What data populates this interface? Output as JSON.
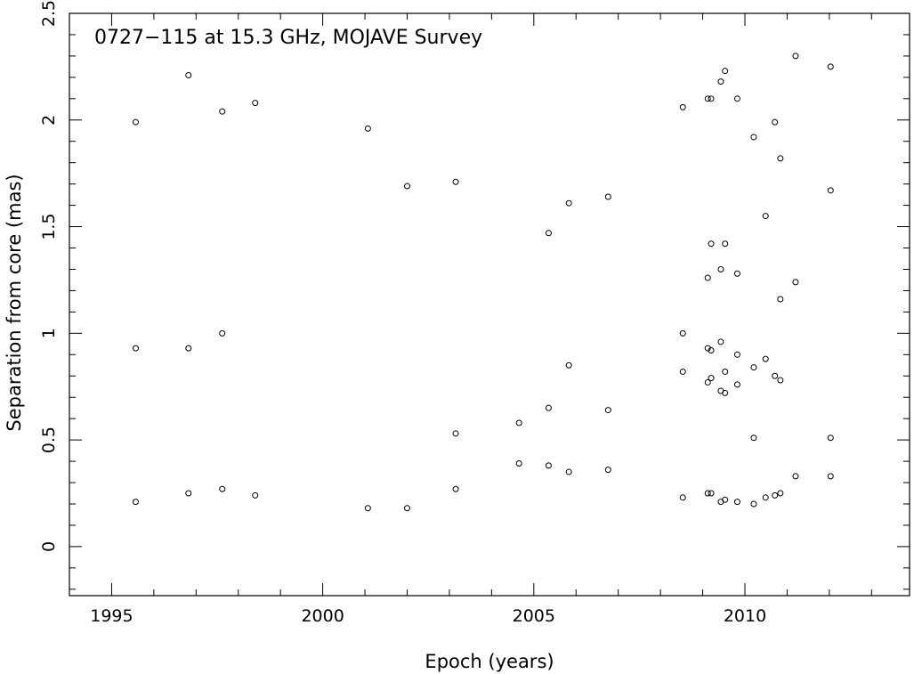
{
  "chart_data": {
    "type": "scatter",
    "title": "0727−115 at 15.3 GHz, MOJAVE Survey",
    "xlabel": "Epoch (years)",
    "ylabel": "Separation from core (mas)",
    "xlim": [
      1994.0,
      2013.9
    ],
    "ylim": [
      -0.23,
      2.5
    ],
    "xticks": [
      1995,
      2000,
      2005,
      2010
    ],
    "xtick_labels": [
      "1995",
      "2000",
      "2005",
      "2010"
    ],
    "yticks": [
      0,
      0.5,
      1,
      1.5,
      2,
      2.5
    ],
    "ytick_labels": [
      "0",
      "0.5",
      "1",
      "1.5",
      "2",
      "2.5"
    ],
    "grid": false,
    "marker": "open-circle",
    "series": [
      {
        "points": [
          [
            1995.57,
            1.99
          ],
          [
            1995.57,
            0.93
          ],
          [
            1995.57,
            0.21
          ],
          [
            1996.82,
            2.21
          ],
          [
            1996.82,
            0.93
          ],
          [
            1996.82,
            0.25
          ],
          [
            1997.62,
            2.04
          ],
          [
            1997.62,
            1.0
          ],
          [
            1997.62,
            0.27
          ],
          [
            1998.4,
            2.08
          ],
          [
            1998.4,
            0.24
          ],
          [
            2001.07,
            1.96
          ],
          [
            2001.07,
            0.18
          ],
          [
            2002.0,
            1.69
          ],
          [
            2002.0,
            0.18
          ],
          [
            2003.15,
            1.71
          ],
          [
            2003.15,
            0.53
          ],
          [
            2003.15,
            0.27
          ],
          [
            2004.65,
            0.58
          ],
          [
            2004.65,
            0.39
          ],
          [
            2005.35,
            1.47
          ],
          [
            2005.35,
            0.65
          ],
          [
            2005.35,
            0.38
          ],
          [
            2005.83,
            1.61
          ],
          [
            2005.83,
            0.85
          ],
          [
            2005.83,
            0.35
          ],
          [
            2006.76,
            1.64
          ],
          [
            2006.76,
            0.64
          ],
          [
            2006.76,
            0.36
          ],
          [
            2008.53,
            2.06
          ],
          [
            2008.53,
            1.0
          ],
          [
            2008.53,
            0.82
          ],
          [
            2008.53,
            0.23
          ],
          [
            2009.12,
            2.1
          ],
          [
            2009.12,
            1.26
          ],
          [
            2009.12,
            0.93
          ],
          [
            2009.12,
            0.77
          ],
          [
            2009.12,
            0.25
          ],
          [
            2009.2,
            2.1
          ],
          [
            2009.2,
            1.42
          ],
          [
            2009.2,
            0.92
          ],
          [
            2009.2,
            0.79
          ],
          [
            2009.2,
            0.25
          ],
          [
            2009.43,
            2.18
          ],
          [
            2009.43,
            1.3
          ],
          [
            2009.43,
            0.96
          ],
          [
            2009.43,
            0.73
          ],
          [
            2009.43,
            0.21
          ],
          [
            2009.53,
            2.23
          ],
          [
            2009.53,
            1.42
          ],
          [
            2009.53,
            0.82
          ],
          [
            2009.53,
            0.72
          ],
          [
            2009.53,
            0.22
          ],
          [
            2009.82,
            2.1
          ],
          [
            2009.82,
            1.28
          ],
          [
            2009.82,
            0.9
          ],
          [
            2009.82,
            0.76
          ],
          [
            2009.82,
            0.21
          ],
          [
            2010.21,
            1.92
          ],
          [
            2010.21,
            0.84
          ],
          [
            2010.21,
            0.51
          ],
          [
            2010.21,
            0.2
          ],
          [
            2010.49,
            1.55
          ],
          [
            2010.49,
            0.88
          ],
          [
            2010.49,
            0.23
          ],
          [
            2010.71,
            1.99
          ],
          [
            2010.71,
            0.8
          ],
          [
            2010.71,
            0.24
          ],
          [
            2010.84,
            1.82
          ],
          [
            2010.84,
            1.16
          ],
          [
            2010.84,
            0.78
          ],
          [
            2010.84,
            0.25
          ],
          [
            2011.2,
            2.3
          ],
          [
            2011.2,
            1.24
          ],
          [
            2011.2,
            0.33
          ],
          [
            2012.03,
            2.25
          ],
          [
            2012.03,
            1.67
          ],
          [
            2012.03,
            0.51
          ],
          [
            2012.03,
            0.33
          ]
        ]
      }
    ]
  }
}
